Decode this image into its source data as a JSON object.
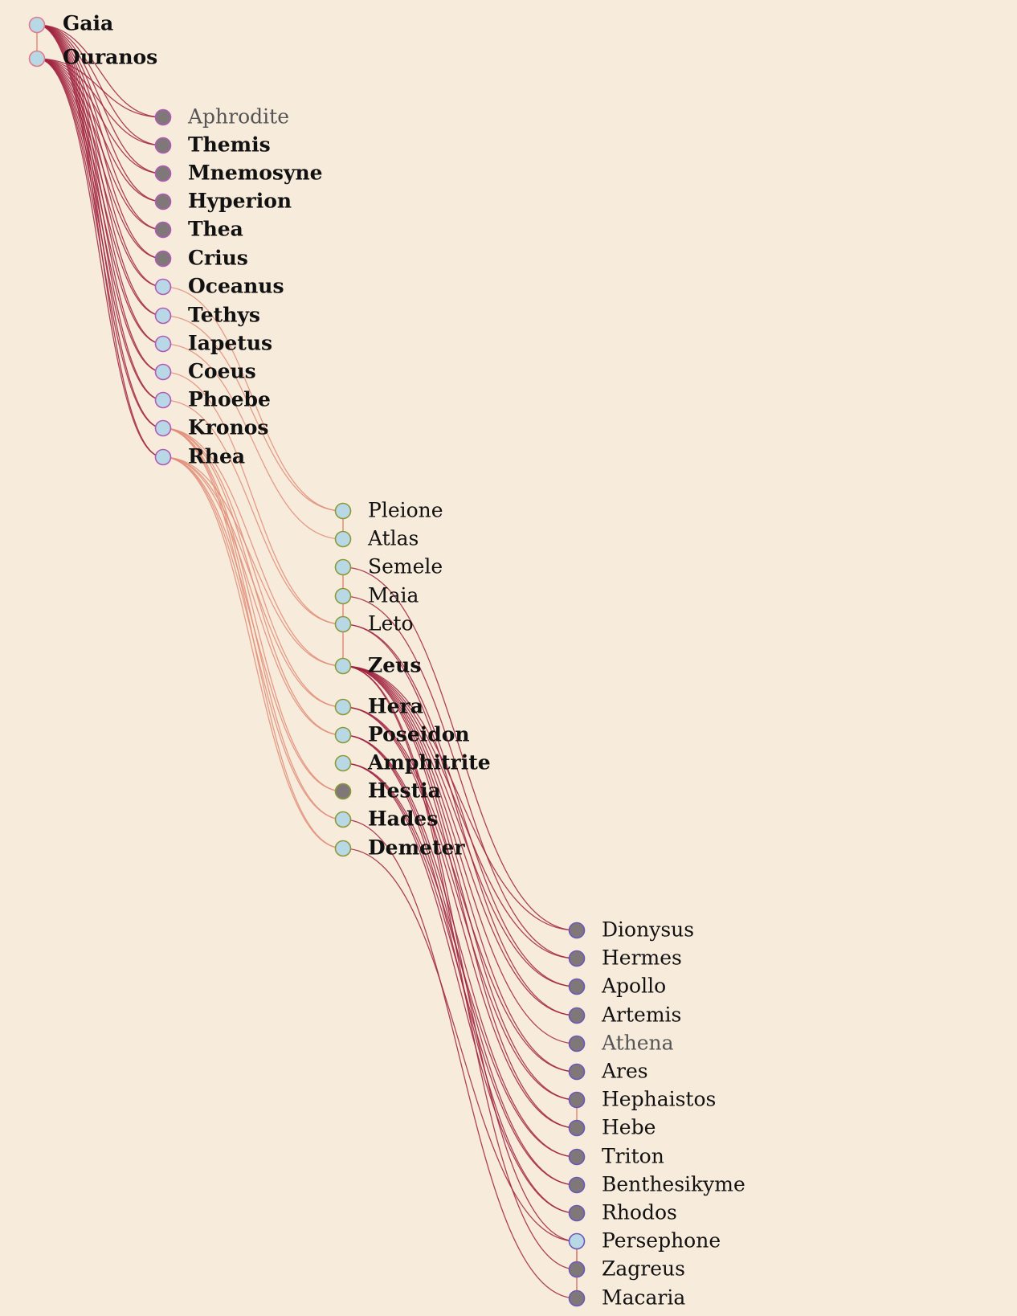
{
  "colors": {
    "background": "#f7ebdb",
    "link_primary": "#a0233f",
    "link_secondary": "#e08d78",
    "node_light": "#b8d8e6",
    "node_dark": "#807878",
    "node_stroke_gen1": "#e07a8a",
    "node_stroke_gen2": "#b05ab8",
    "node_stroke_gen3": "#8a9a3a",
    "node_stroke_gen4": "#6a58b8"
  },
  "generations": [
    {
      "nodes": [
        {
          "id": "gaia",
          "name": "Gaia",
          "fill": "light",
          "style": "bold"
        },
        {
          "id": "ouranos",
          "name": "Ouranos",
          "fill": "light",
          "style": "bold"
        }
      ]
    },
    {
      "nodes": [
        {
          "id": "aphrodite",
          "name": "Aphrodite",
          "fill": "dark",
          "style": "light"
        },
        {
          "id": "themis",
          "name": "Themis",
          "fill": "dark",
          "style": "bold"
        },
        {
          "id": "mnemosyne",
          "name": "Mnemosyne",
          "fill": "dark",
          "style": "bold"
        },
        {
          "id": "hyperion",
          "name": "Hyperion",
          "fill": "dark",
          "style": "bold"
        },
        {
          "id": "thea",
          "name": "Thea",
          "fill": "dark",
          "style": "bold"
        },
        {
          "id": "crius",
          "name": "Crius",
          "fill": "dark",
          "style": "bold"
        },
        {
          "id": "oceanus",
          "name": "Oceanus",
          "fill": "light",
          "style": "bold"
        },
        {
          "id": "tethys",
          "name": "Tethys",
          "fill": "light",
          "style": "bold"
        },
        {
          "id": "iapetus",
          "name": "Iapetus",
          "fill": "light",
          "style": "bold"
        },
        {
          "id": "coeus",
          "name": "Coeus",
          "fill": "light",
          "style": "bold"
        },
        {
          "id": "phoebe",
          "name": "Phoebe",
          "fill": "light",
          "style": "bold"
        },
        {
          "id": "kronos",
          "name": "Kronos",
          "fill": "light",
          "style": "bold"
        },
        {
          "id": "rhea",
          "name": "Rhea",
          "fill": "light",
          "style": "bold"
        }
      ]
    },
    {
      "nodes": [
        {
          "id": "pleione",
          "name": "Pleione",
          "fill": "light",
          "style": "normal"
        },
        {
          "id": "atlas",
          "name": "Atlas",
          "fill": "light",
          "style": "normal"
        },
        {
          "id": "semele",
          "name": "Semele",
          "fill": "light",
          "style": "normal"
        },
        {
          "id": "maia",
          "name": "Maia",
          "fill": "light",
          "style": "normal"
        },
        {
          "id": "leto",
          "name": "Leto",
          "fill": "light",
          "style": "normal"
        },
        {
          "id": "zeus",
          "name": "Zeus",
          "fill": "light",
          "style": "bold"
        },
        {
          "id": "hera",
          "name": "Hera",
          "fill": "light",
          "style": "bold"
        },
        {
          "id": "poseidon",
          "name": "Poseidon",
          "fill": "light",
          "style": "bold"
        },
        {
          "id": "amphitrite",
          "name": "Amphitrite",
          "fill": "light",
          "style": "bold"
        },
        {
          "id": "hestia",
          "name": "Hestia",
          "fill": "dark",
          "style": "bold"
        },
        {
          "id": "hades",
          "name": "Hades",
          "fill": "light",
          "style": "bold"
        },
        {
          "id": "demeter",
          "name": "Demeter",
          "fill": "light",
          "style": "bold"
        }
      ]
    },
    {
      "nodes": [
        {
          "id": "dionysus",
          "name": "Dionysus",
          "fill": "dark",
          "style": "normal"
        },
        {
          "id": "hermes",
          "name": "Hermes",
          "fill": "dark",
          "style": "normal"
        },
        {
          "id": "apollo",
          "name": "Apollo",
          "fill": "dark",
          "style": "normal"
        },
        {
          "id": "artemis",
          "name": "Artemis",
          "fill": "dark",
          "style": "normal"
        },
        {
          "id": "athena",
          "name": "Athena",
          "fill": "dark",
          "style": "light"
        },
        {
          "id": "ares",
          "name": "Ares",
          "fill": "dark",
          "style": "normal"
        },
        {
          "id": "hephaistos",
          "name": "Hephaistos",
          "fill": "dark",
          "style": "normal"
        },
        {
          "id": "hebe",
          "name": "Hebe",
          "fill": "dark",
          "style": "normal"
        },
        {
          "id": "triton",
          "name": "Triton",
          "fill": "dark",
          "style": "normal"
        },
        {
          "id": "benthesikyme",
          "name": "Benthesikyme",
          "fill": "dark",
          "style": "normal"
        },
        {
          "id": "rhodos",
          "name": "Rhodos",
          "fill": "dark",
          "style": "normal"
        },
        {
          "id": "persephone",
          "name": "Persephone",
          "fill": "light",
          "style": "normal"
        },
        {
          "id": "zagreus",
          "name": "Zagreus",
          "fill": "dark",
          "style": "normal"
        },
        {
          "id": "macaria",
          "name": "Macaria",
          "fill": "dark",
          "style": "normal"
        }
      ]
    }
  ],
  "links": [
    [
      "gaia",
      "aphrodite"
    ],
    [
      "ouranos",
      "aphrodite"
    ],
    [
      "gaia",
      "themis"
    ],
    [
      "ouranos",
      "themis"
    ],
    [
      "gaia",
      "mnemosyne"
    ],
    [
      "ouranos",
      "mnemosyne"
    ],
    [
      "gaia",
      "hyperion"
    ],
    [
      "ouranos",
      "hyperion"
    ],
    [
      "gaia",
      "thea"
    ],
    [
      "ouranos",
      "thea"
    ],
    [
      "gaia",
      "crius"
    ],
    [
      "ouranos",
      "crius"
    ],
    [
      "gaia",
      "oceanus"
    ],
    [
      "ouranos",
      "oceanus"
    ],
    [
      "gaia",
      "tethys"
    ],
    [
      "ouranos",
      "tethys"
    ],
    [
      "gaia",
      "iapetus"
    ],
    [
      "ouranos",
      "iapetus"
    ],
    [
      "gaia",
      "coeus"
    ],
    [
      "ouranos",
      "coeus"
    ],
    [
      "gaia",
      "phoebe"
    ],
    [
      "ouranos",
      "phoebe"
    ],
    [
      "gaia",
      "kronos"
    ],
    [
      "ouranos",
      "kronos"
    ],
    [
      "gaia",
      "rhea"
    ],
    [
      "ouranos",
      "rhea"
    ],
    [
      "oceanus",
      "pleione"
    ],
    [
      "tethys",
      "pleione"
    ],
    [
      "iapetus",
      "atlas"
    ],
    [
      "coeus",
      "leto"
    ],
    [
      "phoebe",
      "leto"
    ],
    [
      "kronos",
      "zeus"
    ],
    [
      "rhea",
      "zeus"
    ],
    [
      "kronos",
      "hera"
    ],
    [
      "rhea",
      "hera"
    ],
    [
      "kronos",
      "poseidon"
    ],
    [
      "rhea",
      "poseidon"
    ],
    [
      "kronos",
      "hestia"
    ],
    [
      "rhea",
      "hestia"
    ],
    [
      "kronos",
      "hades"
    ],
    [
      "rhea",
      "hades"
    ],
    [
      "kronos",
      "demeter"
    ],
    [
      "rhea",
      "demeter"
    ],
    [
      "semele",
      "dionysus"
    ],
    [
      "zeus",
      "dionysus"
    ],
    [
      "maia",
      "hermes"
    ],
    [
      "zeus",
      "hermes"
    ],
    [
      "leto",
      "apollo"
    ],
    [
      "zeus",
      "apollo"
    ],
    [
      "leto",
      "artemis"
    ],
    [
      "zeus",
      "artemis"
    ],
    [
      "zeus",
      "athena"
    ],
    [
      "zeus",
      "ares"
    ],
    [
      "hera",
      "ares"
    ],
    [
      "zeus",
      "hephaistos"
    ],
    [
      "hera",
      "hephaistos"
    ],
    [
      "zeus",
      "hebe"
    ],
    [
      "hera",
      "hebe"
    ],
    [
      "poseidon",
      "triton"
    ],
    [
      "amphitrite",
      "triton"
    ],
    [
      "poseidon",
      "benthesikyme"
    ],
    [
      "amphitrite",
      "benthesikyme"
    ],
    [
      "poseidon",
      "rhodos"
    ],
    [
      "amphitrite",
      "rhodos"
    ],
    [
      "zeus",
      "persephone"
    ],
    [
      "demeter",
      "persephone"
    ],
    [
      "persephone",
      "zagreus"
    ],
    [
      "zeus",
      "zagreus"
    ],
    [
      "hades",
      "macaria"
    ],
    [
      "persephone",
      "macaria"
    ]
  ],
  "couples": [
    [
      "gaia",
      "ouranos"
    ],
    [
      "pleione",
      "atlas"
    ],
    [
      "semele",
      "zeus"
    ],
    [
      "hebe",
      "hephaistos"
    ],
    [
      "persephone",
      "macaria"
    ]
  ]
}
